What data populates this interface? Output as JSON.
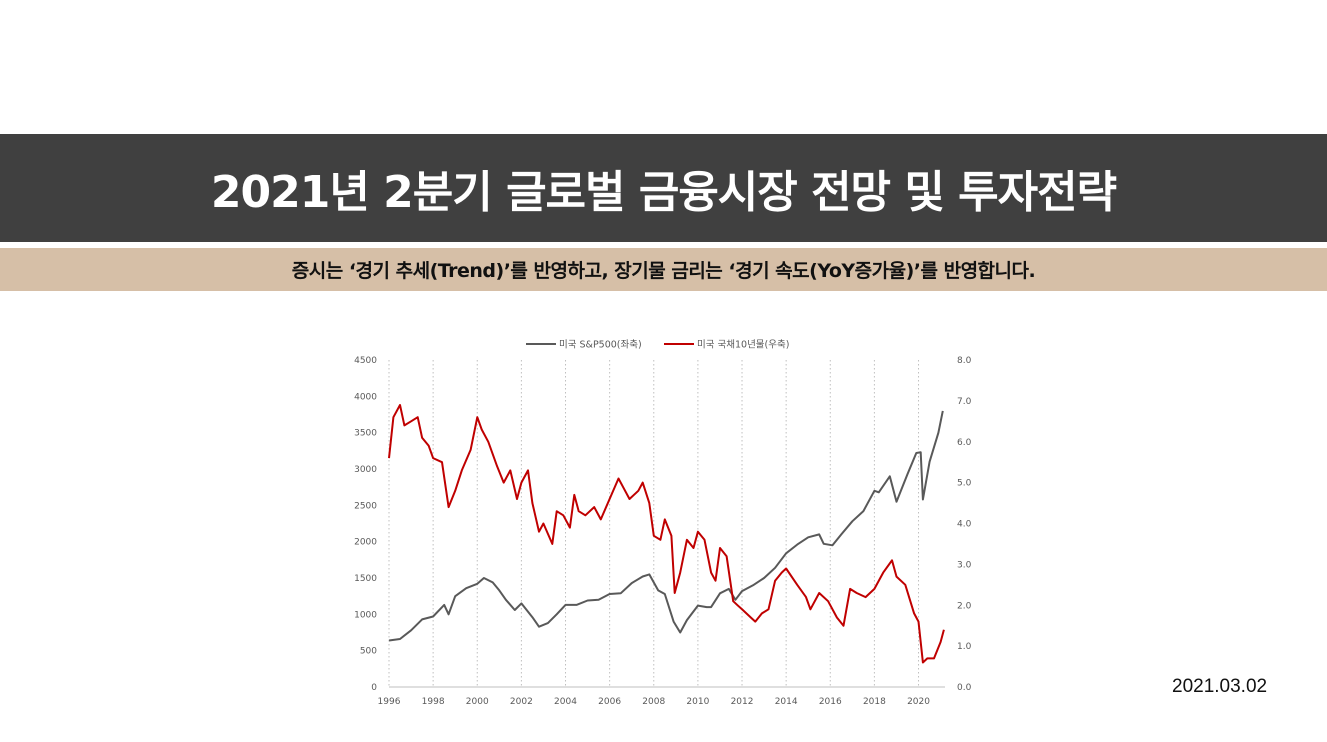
{
  "header": {
    "title": "2021년 2분기 글로벌 금융시장 전망 및 투자전략",
    "subtitle": "증시는 ‘경기 추세(Trend)’를 반영하고, 장기물 금리는 ‘경기 속도(YoY증가율)’를 반영합니다."
  },
  "footer": {
    "date": "2021.03.02"
  },
  "chart_data": {
    "type": "line",
    "title": "",
    "xlabel": "",
    "ylabel": "",
    "xlim": [
      1996,
      2021.2
    ],
    "x_ticks": [
      "1996",
      "1998",
      "2000",
      "2002",
      "2004",
      "2006",
      "2008",
      "2010",
      "2012",
      "2014",
      "2016",
      "2018",
      "2020"
    ],
    "y_left": {
      "lim": [
        0,
        4500
      ],
      "ticks": [
        "0",
        "500",
        "1000",
        "1500",
        "2000",
        "2500",
        "3000",
        "3500",
        "4000",
        "4500"
      ]
    },
    "y_right": {
      "lim": [
        0,
        8
      ],
      "ticks": [
        "0.0",
        "1.0",
        "2.0",
        "3.0",
        "4.0",
        "5.0",
        "6.0",
        "7.0",
        "8.0"
      ]
    },
    "grid": "vertical dotted at x ticks",
    "legend_position": "top",
    "series": [
      {
        "name": "미국 S&P500(좌축)",
        "axis": "left",
        "color": "#595959",
        "x": [
          1996.0,
          1996.5,
          1997.0,
          1997.5,
          1998.0,
          1998.5,
          1998.7,
          1999.0,
          1999.5,
          2000.0,
          2000.3,
          2000.7,
          2001.0,
          2001.3,
          2001.7,
          2002.0,
          2002.5,
          2002.8,
          2003.2,
          2003.6,
          2004.0,
          2004.5,
          2005.0,
          2005.5,
          2006.0,
          2006.5,
          2007.0,
          2007.5,
          2007.8,
          2008.2,
          2008.5,
          2008.9,
          2009.2,
          2009.5,
          2010.0,
          2010.4,
          2010.6,
          2011.0,
          2011.4,
          2011.7,
          2012.0,
          2012.5,
          2013.0,
          2013.5,
          2014.0,
          2014.5,
          2015.0,
          2015.5,
          2015.7,
          2016.1,
          2016.5,
          2017.0,
          2017.5,
          2018.0,
          2018.2,
          2018.7,
          2019.0,
          2019.5,
          2019.9,
          2020.1,
          2020.2,
          2020.5,
          2020.9,
          2021.1
        ],
        "values": [
          640,
          660,
          780,
          930,
          970,
          1130,
          1000,
          1250,
          1360,
          1420,
          1500,
          1440,
          1330,
          1200,
          1060,
          1150,
          960,
          830,
          880,
          1000,
          1130,
          1130,
          1190,
          1200,
          1280,
          1290,
          1430,
          1520,
          1550,
          1330,
          1280,
          900,
          750,
          920,
          1120,
          1100,
          1100,
          1290,
          1350,
          1200,
          1320,
          1400,
          1500,
          1640,
          1840,
          1960,
          2060,
          2100,
          1970,
          1950,
          2100,
          2280,
          2420,
          2700,
          2680,
          2900,
          2550,
          2930,
          3220,
          3230,
          2580,
          3100,
          3500,
          3800
        ]
      },
      {
        "name": "미국 국채10년물(우축)",
        "axis": "right",
        "color": "#c00000",
        "x": [
          1996.0,
          1996.2,
          1996.5,
          1996.7,
          1997.0,
          1997.3,
          1997.5,
          1997.8,
          1998.0,
          1998.4,
          1998.7,
          1999.0,
          1999.3,
          1999.7,
          2000.0,
          2000.2,
          2000.5,
          2000.9,
          2001.2,
          2001.5,
          2001.8,
          2002.0,
          2002.3,
          2002.5,
          2002.8,
          2003.0,
          2003.4,
          2003.6,
          2003.9,
          2004.2,
          2004.4,
          2004.6,
          2004.9,
          2005.3,
          2005.6,
          2006.0,
          2006.4,
          2006.6,
          2006.9,
          2007.3,
          2007.5,
          2007.8,
          2008.0,
          2008.3,
          2008.5,
          2008.8,
          2008.95,
          2009.2,
          2009.5,
          2009.8,
          2010.0,
          2010.3,
          2010.6,
          2010.8,
          2011.0,
          2011.3,
          2011.6,
          2011.8,
          2012.0,
          2012.4,
          2012.6,
          2012.9,
          2013.2,
          2013.5,
          2013.8,
          2014.0,
          2014.5,
          2014.9,
          2015.1,
          2015.5,
          2015.9,
          2016.3,
          2016.6,
          2016.9,
          2017.2,
          2017.6,
          2018.0,
          2018.4,
          2018.8,
          2019.0,
          2019.4,
          2019.8,
          2020.0,
          2020.2,
          2020.4,
          2020.7,
          2021.0,
          2021.15
        ],
        "values": [
          5.6,
          6.6,
          6.9,
          6.4,
          6.5,
          6.6,
          6.1,
          5.9,
          5.6,
          5.5,
          4.4,
          4.8,
          5.3,
          5.8,
          6.6,
          6.3,
          6.0,
          5.4,
          5.0,
          5.3,
          4.6,
          5.0,
          5.3,
          4.5,
          3.8,
          4.0,
          3.5,
          4.3,
          4.2,
          3.9,
          4.7,
          4.3,
          4.2,
          4.4,
          4.1,
          4.6,
          5.1,
          4.9,
          4.6,
          4.8,
          5.0,
          4.5,
          3.7,
          3.6,
          4.1,
          3.7,
          2.3,
          2.8,
          3.6,
          3.4,
          3.8,
          3.6,
          2.8,
          2.6,
          3.4,
          3.2,
          2.1,
          2.0,
          1.9,
          1.7,
          1.6,
          1.8,
          1.9,
          2.6,
          2.8,
          2.9,
          2.5,
          2.2,
          1.9,
          2.3,
          2.1,
          1.7,
          1.5,
          2.4,
          2.3,
          2.2,
          2.4,
          2.8,
          3.1,
          2.7,
          2.5,
          1.8,
          1.6,
          0.6,
          0.7,
          0.7,
          1.1,
          1.4
        ]
      }
    ]
  }
}
